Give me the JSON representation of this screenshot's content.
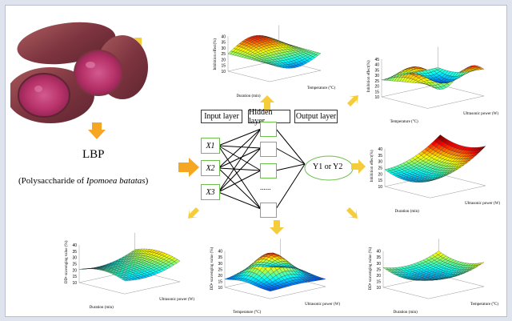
{
  "compound": {
    "abbrev": "LBP",
    "full_prefix": "(Polysaccharide of ",
    "full_italic": "Ipomoea batatas",
    "full_suffix": ")"
  },
  "network": {
    "input_layer_label": "Input layer",
    "hidden_layer_label": "Hidden layer",
    "output_layer_label": "Output layer",
    "inputs": [
      "X1",
      "X2",
      "X3"
    ],
    "hidden_ellipsis": "......",
    "output_label": "Y1 or Y2"
  },
  "surfaces": [
    {
      "id": "top-center",
      "z_label": "Inhibition effect(%)",
      "x_label": "Duration (min)",
      "y_label": "Temperature (°C)",
      "z_ticks": [
        "40",
        "35",
        "30",
        "25",
        "20",
        "15",
        "10"
      ]
    },
    {
      "id": "top-right",
      "z_label": "Inhibition effect(%)",
      "x_label": "Temperature (°C)",
      "y_label": "Ultrasonic power (W)",
      "z_ticks": [
        "45",
        "40",
        "35",
        "30",
        "25",
        "20",
        "15",
        "10"
      ]
    },
    {
      "id": "mid-right",
      "z_label": "Inhibition effect(%)",
      "x_label": "Duration (min)",
      "y_label": "Ultrasonic power (W)",
      "z_ticks": [
        "40",
        "35",
        "30",
        "25",
        "20",
        "15",
        "10"
      ]
    },
    {
      "id": "bottom-left",
      "z_label": "DD• scavenging value (%)",
      "x_label": "Duration (min)",
      "y_label": "Ultrasonic power (W)",
      "z_ticks": [
        "40",
        "35",
        "30",
        "25",
        "20",
        "15",
        "10"
      ]
    },
    {
      "id": "bottom-center",
      "z_label": "DD• scavenging value (%)",
      "x_label": "Temperature (°C)",
      "y_label": "Ultrasonic power (W)",
      "z_ticks": [
        "40",
        "35",
        "30",
        "25",
        "20",
        "15",
        "10"
      ]
    },
    {
      "id": "bottom-right",
      "z_label": "DD• scavenging value (%)",
      "x_label": "Duration (min)",
      "y_label": "Temperature (°C)",
      "z_ticks": [
        "40",
        "35",
        "30",
        "25",
        "20",
        "15",
        "10"
      ]
    }
  ],
  "colors": {
    "arrow": "#f5a623",
    "node_border": "#6bbf4a",
    "potato_skin": "#8a3d46",
    "potato_flesh": "#b8336a"
  }
}
